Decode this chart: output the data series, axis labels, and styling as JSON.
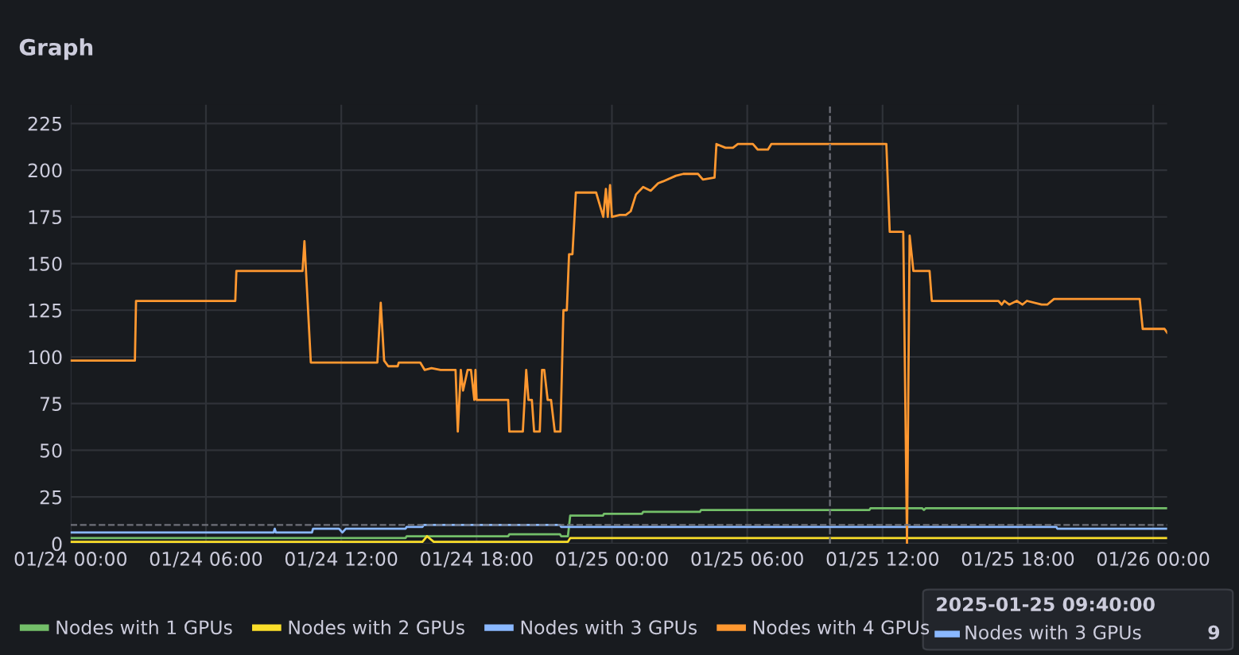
{
  "chart_data": {
    "type": "line",
    "title": "Graph",
    "series": [
      {
        "name": "Nodes with 1 GPUs",
        "color": "#73bf69",
        "x": [
          "2025-01-24T00:00",
          "2025-01-24T14:51",
          "2025-01-24T14:54",
          "2025-01-24T19:24",
          "2025-01-24T19:27",
          "2025-01-24T21:42",
          "2025-01-24T21:45",
          "2025-01-24T22:03",
          "2025-01-24T22:09",
          "2025-01-24T23:36",
          "2025-01-24T23:39",
          "2025-01-25T01:20",
          "2025-01-25T01:23",
          "2025-01-25T03:54",
          "2025-01-25T03:57",
          "2025-01-25T11:25",
          "2025-01-25T11:28",
          "2025-01-25T13:45",
          "2025-01-25T13:50",
          "2025-01-25T13:55",
          "2025-01-26T00:37"
        ],
        "values": [
          3,
          3,
          4,
          4,
          5,
          5,
          4,
          4,
          15,
          15,
          16,
          16,
          17,
          17,
          18,
          18,
          19,
          19,
          18,
          19,
          19
        ]
      },
      {
        "name": "Nodes with 2 GPUs",
        "color": "#fade2a",
        "x": [
          "2025-01-24T00:00",
          "2025-01-24T15:36",
          "2025-01-24T15:48",
          "2025-01-24T16:06",
          "2025-01-24T22:03",
          "2025-01-24T22:09",
          "2025-01-26T00:37"
        ],
        "values": [
          1,
          1,
          4,
          1,
          1,
          3,
          3
        ]
      },
      {
        "name": "Nodes with 3 GPUs",
        "color": "#8ab8ff",
        "x": [
          "2025-01-24T00:00",
          "2025-01-24T09:00",
          "2025-01-24T09:03",
          "2025-01-24T09:06",
          "2025-01-24T10:42",
          "2025-01-24T10:45",
          "2025-01-24T11:54",
          "2025-01-24T12:03",
          "2025-01-24T12:12",
          "2025-01-24T14:51",
          "2025-01-24T14:54",
          "2025-01-24T15:36",
          "2025-01-24T15:39",
          "2025-01-24T21:42",
          "2025-01-24T21:45",
          "2025-01-25T19:42",
          "2025-01-25T19:45",
          "2025-01-26T00:37"
        ],
        "values": [
          6,
          6,
          8,
          6,
          6,
          8,
          8,
          6,
          8,
          8,
          9,
          9,
          10,
          10,
          9,
          9,
          8,
          8
        ]
      },
      {
        "name": "Nodes with 4 GPUs",
        "color": "#ff9830",
        "x": [
          "2025-01-24T00:00",
          "2025-01-24T02:51",
          "2025-01-24T02:54",
          "2025-01-24T07:18",
          "2025-01-24T07:21",
          "2025-01-24T10:17",
          "2025-01-24T10:22",
          "2025-01-24T10:39",
          "2025-01-24T13:36",
          "2025-01-24T13:45",
          "2025-01-24T13:54",
          "2025-01-24T14:05",
          "2025-01-24T14:30",
          "2025-01-24T14:33",
          "2025-01-24T15:30",
          "2025-01-24T15:42",
          "2025-01-24T16:00",
          "2025-01-24T16:24",
          "2025-01-24T17:04",
          "2025-01-24T17:10",
          "2025-01-24T17:18",
          "2025-01-24T17:24",
          "2025-01-24T17:36",
          "2025-01-24T17:45",
          "2025-01-24T17:54",
          "2025-01-24T17:57",
          "2025-01-24T18:00",
          "2025-01-24T19:24",
          "2025-01-24T19:27",
          "2025-01-24T20:03",
          "2025-01-24T20:12",
          "2025-01-24T20:18",
          "2025-01-24T20:27",
          "2025-01-24T20:33",
          "2025-01-24T20:48",
          "2025-01-24T20:54",
          "2025-01-24T21:00",
          "2025-01-24T21:09",
          "2025-01-24T21:18",
          "2025-01-24T21:28",
          "2025-01-24T21:43",
          "2025-01-24T21:51",
          "2025-01-24T22:00",
          "2025-01-24T22:06",
          "2025-01-24T22:15",
          "2025-01-24T22:24",
          "2025-01-24T23:18",
          "2025-01-24T23:37",
          "2025-01-24T23:44",
          "2025-01-24T23:49",
          "2025-01-24T23:55",
          "2025-01-25T00:00",
          "2025-01-25T00:21",
          "2025-01-25T00:37",
          "2025-01-25T00:50",
          "2025-01-25T01:04",
          "2025-01-25T01:23",
          "2025-01-25T01:43",
          "2025-01-25T02:03",
          "2025-01-25T02:16",
          "2025-01-25T02:50",
          "2025-01-25T03:10",
          "2025-01-25T03:49",
          "2025-01-25T04:02",
          "2025-01-25T04:33",
          "2025-01-25T04:38",
          "2025-01-25T05:02",
          "2025-01-25T05:22",
          "2025-01-25T05:35",
          "2025-01-25T06:15",
          "2025-01-25T06:28",
          "2025-01-25T06:55",
          "2025-01-25T07:04",
          "2025-01-25T12:10",
          "2025-01-25T12:19",
          "2025-01-25T12:55",
          "2025-01-25T13:05",
          "2025-01-25T13:12",
          "2025-01-25T13:22",
          "2025-01-25T14:05",
          "2025-01-25T14:11",
          "2025-01-25T17:08",
          "2025-01-25T17:17",
          "2025-01-25T17:24",
          "2025-01-25T17:37",
          "2025-01-25T17:57",
          "2025-01-25T18:12",
          "2025-01-25T18:24",
          "2025-01-25T19:03",
          "2025-01-25T19:18",
          "2025-01-25T19:36",
          "2025-01-25T23:24",
          "2025-01-25T23:32",
          "2025-01-26T00:30",
          "2025-01-26T00:37"
        ],
        "values": [
          98,
          98,
          130,
          130,
          146,
          146,
          162,
          97,
          97,
          129,
          98,
          95,
          95,
          97,
          97,
          93,
          94,
          93,
          93,
          60,
          93,
          82,
          93,
          93,
          77,
          93,
          77,
          77,
          60,
          60,
          93,
          77,
          77,
          60,
          60,
          93,
          93,
          77,
          77,
          60,
          60,
          125,
          125,
          155,
          155,
          188,
          188,
          175,
          190,
          175,
          192,
          175,
          176,
          176,
          178,
          187,
          191,
          189,
          193,
          194,
          197,
          198,
          198,
          195,
          196,
          214,
          212,
          212,
          214,
          214,
          211,
          211,
          214,
          214,
          167,
          167,
          0,
          165,
          146,
          146,
          130,
          130,
          128,
          130,
          128,
          130,
          128,
          130,
          128,
          128,
          131,
          131,
          115,
          115,
          113
        ]
      }
    ],
    "xlim": [
      "2025-01-24T00:00",
      "2025-01-26T00:37"
    ],
    "xticks": [
      {
        "value": "2025-01-24T00:00",
        "label": "01/24 00:00"
      },
      {
        "value": "2025-01-24T06:00",
        "label": "01/24 06:00"
      },
      {
        "value": "2025-01-24T12:00",
        "label": "01/24 12:00"
      },
      {
        "value": "2025-01-24T18:00",
        "label": "01/24 18:00"
      },
      {
        "value": "2025-01-25T00:00",
        "label": "01/25 00:00"
      },
      {
        "value": "2025-01-25T06:00",
        "label": "01/25 06:00"
      },
      {
        "value": "2025-01-25T12:00",
        "label": "01/25 12:00"
      },
      {
        "value": "2025-01-25T18:00",
        "label": "01/25 18:00"
      },
      {
        "value": "2025-01-26T00:00",
        "label": "01/26 00:00"
      }
    ],
    "ylim": [
      0,
      235
    ],
    "yticks": [
      0,
      25,
      50,
      75,
      100,
      125,
      150,
      175,
      200,
      225
    ],
    "grid": true,
    "legend": "bottom",
    "marker": "none",
    "line_style": "solid",
    "ref_lines": [
      {
        "axis": "x",
        "value": "2025-01-25T09:40",
        "color": "#6e7079",
        "line_style": "dashed"
      },
      {
        "axis": "y",
        "value": 10,
        "color": "#6e7079",
        "line_style": "dashed"
      }
    ],
    "annotations": [
      "2025-01-25 09:40:00",
      "Nodes with 3 GPUs",
      "9"
    ]
  }
}
